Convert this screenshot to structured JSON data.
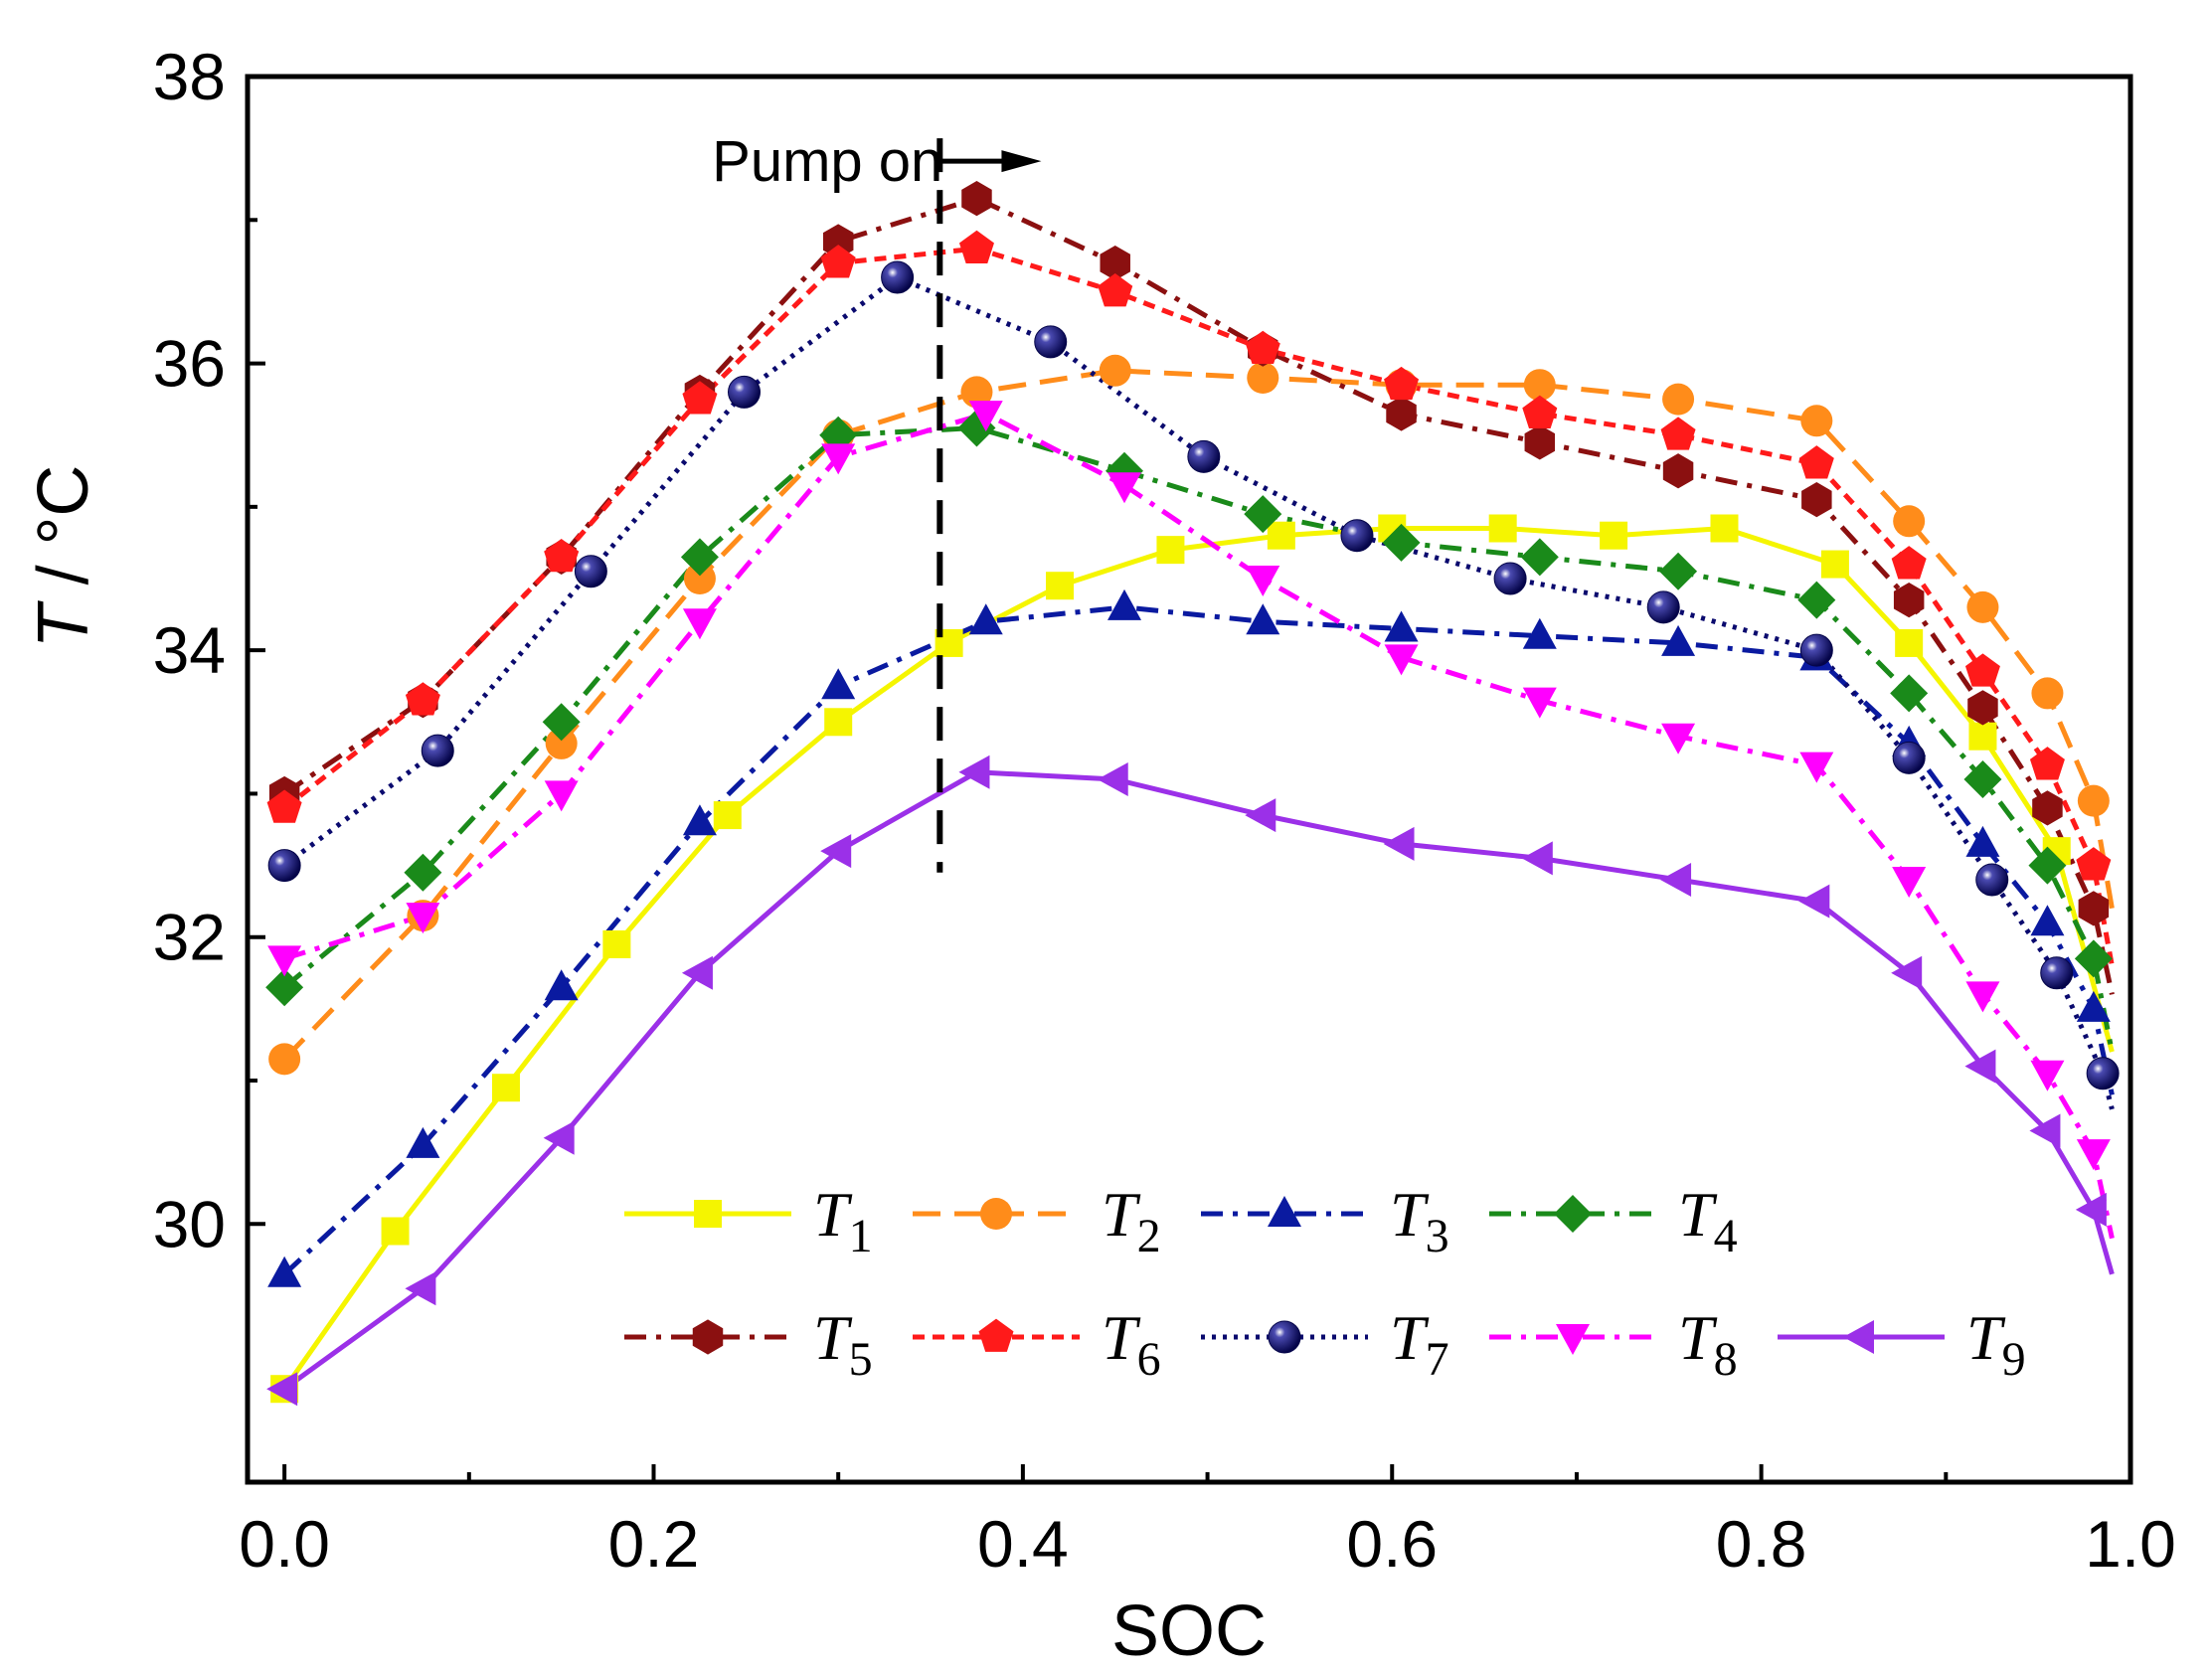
{
  "chart_data": {
    "type": "line",
    "title": "",
    "xlabel": "SOC",
    "ylabel_italic": "T",
    "ylabel_rest": " / °C",
    "xlim": [
      -0.02,
      1.0
    ],
    "ylim": [
      28.2,
      38.0
    ],
    "xticks": [
      0.0,
      0.2,
      0.4,
      0.6,
      0.8,
      1.0
    ],
    "xtick_labels": [
      "0.0",
      "0.2",
      "0.4",
      "0.6",
      "0.8",
      "1.0"
    ],
    "yticks": [
      30,
      32,
      34,
      36,
      38
    ],
    "ytick_labels": [
      "30",
      "32",
      "34",
      "36",
      "38"
    ],
    "annotation": {
      "text": "Pump on",
      "x": 0.355,
      "y_from": 37.5,
      "y_to": 32.45,
      "arrow_to_x": 0.41
    },
    "legend_position": "bottom-right",
    "series": [
      {
        "name": "T1",
        "label_main": "T",
        "label_sub": "1",
        "color": "#f5f500",
        "dash": "",
        "marker": "square",
        "x": [
          0.0,
          0.06,
          0.12,
          0.18,
          0.24,
          0.3,
          0.36,
          0.42,
          0.48,
          0.54,
          0.6,
          0.66,
          0.72,
          0.78,
          0.84,
          0.88,
          0.92,
          0.96,
          0.99
        ],
        "y": [
          28.85,
          29.95,
          30.95,
          31.95,
          32.85,
          33.5,
          34.05,
          34.45,
          34.7,
          34.8,
          34.85,
          34.85,
          34.8,
          34.85,
          34.6,
          34.05,
          33.4,
          32.6,
          31.2
        ]
      },
      {
        "name": "T2",
        "label_main": "T",
        "label_sub": "2",
        "color": "#ff8c1a",
        "dash": "28,14",
        "marker": "circle",
        "x": [
          0.0,
          0.075,
          0.15,
          0.225,
          0.3,
          0.375,
          0.45,
          0.53,
          0.605,
          0.68,
          0.755,
          0.83,
          0.88,
          0.92,
          0.955,
          0.98,
          0.99
        ],
        "y": [
          31.15,
          32.15,
          33.35,
          34.5,
          35.5,
          35.8,
          35.95,
          35.9,
          35.85,
          35.85,
          35.75,
          35.6,
          34.9,
          34.3,
          33.7,
          32.95,
          32.2
        ]
      },
      {
        "name": "T3",
        "label_main": "T",
        "label_sub": "3",
        "color": "#0a1aa0",
        "dash": "22,10,5,10",
        "marker": "triangle-up",
        "x": [
          0.0,
          0.075,
          0.15,
          0.225,
          0.3,
          0.38,
          0.455,
          0.53,
          0.605,
          0.68,
          0.755,
          0.83,
          0.88,
          0.92,
          0.955,
          0.98,
          0.99
        ],
        "y": [
          29.65,
          30.55,
          31.65,
          32.8,
          33.75,
          34.2,
          34.3,
          34.2,
          34.15,
          34.1,
          34.05,
          33.95,
          33.35,
          32.65,
          32.1,
          31.5,
          30.9
        ]
      },
      {
        "name": "T4",
        "label_main": "T",
        "label_sub": "4",
        "color": "#1a8a1a",
        "dash": "22,10,5,10",
        "marker": "diamond",
        "x": [
          0.0,
          0.075,
          0.15,
          0.225,
          0.3,
          0.375,
          0.455,
          0.53,
          0.605,
          0.68,
          0.755,
          0.83,
          0.88,
          0.92,
          0.955,
          0.98,
          0.99
        ],
        "y": [
          31.65,
          32.45,
          33.5,
          34.65,
          35.5,
          35.55,
          35.25,
          34.95,
          34.75,
          34.65,
          34.55,
          34.35,
          33.7,
          33.1,
          32.5,
          31.85,
          31.2
        ]
      },
      {
        "name": "T5",
        "label_main": "T",
        "label_sub": "5",
        "color": "#8b1010",
        "dash": "22,10,5,10",
        "marker": "hexagon",
        "x": [
          0.0,
          0.075,
          0.15,
          0.225,
          0.3,
          0.375,
          0.45,
          0.53,
          0.605,
          0.68,
          0.755,
          0.83,
          0.88,
          0.92,
          0.955,
          0.98,
          0.99
        ],
        "y": [
          33.0,
          33.65,
          34.65,
          35.8,
          36.85,
          37.15,
          36.7,
          36.1,
          35.65,
          35.45,
          35.25,
          35.05,
          34.35,
          33.6,
          32.9,
          32.2,
          31.6
        ]
      },
      {
        "name": "T6",
        "label_main": "T",
        "label_sub": "6",
        "color": "#ff1a1a",
        "dash": "12,8",
        "marker": "pentagon",
        "x": [
          0.0,
          0.075,
          0.15,
          0.225,
          0.3,
          0.375,
          0.45,
          0.53,
          0.605,
          0.68,
          0.755,
          0.83,
          0.88,
          0.92,
          0.955,
          0.98,
          0.99
        ],
        "y": [
          32.9,
          33.65,
          34.65,
          35.75,
          36.7,
          36.8,
          36.5,
          36.1,
          35.85,
          35.65,
          35.5,
          35.3,
          34.6,
          33.85,
          33.2,
          32.5,
          31.8
        ]
      },
      {
        "name": "T7",
        "label_main": "T",
        "label_sub": "7",
        "color": "#0a0a6e",
        "dash": "4,7",
        "marker": "sphere",
        "x": [
          0.0,
          0.083,
          0.166,
          0.249,
          0.332,
          0.415,
          0.498,
          0.581,
          0.664,
          0.747,
          0.83,
          0.88,
          0.925,
          0.96,
          0.985,
          0.99
        ],
        "y": [
          32.5,
          33.3,
          34.55,
          35.8,
          36.6,
          36.15,
          35.35,
          34.8,
          34.5,
          34.3,
          34.0,
          33.25,
          32.4,
          31.75,
          31.05,
          30.8
        ]
      },
      {
        "name": "T8",
        "label_main": "T",
        "label_sub": "8",
        "color": "#ff00ff",
        "dash": "22,10,5,10",
        "marker": "triangle-down",
        "x": [
          0.0,
          0.075,
          0.15,
          0.225,
          0.3,
          0.38,
          0.455,
          0.53,
          0.605,
          0.68,
          0.755,
          0.83,
          0.88,
          0.92,
          0.955,
          0.98,
          0.99
        ],
        "y": [
          31.85,
          32.15,
          33.0,
          34.2,
          35.35,
          35.65,
          35.15,
          34.5,
          33.95,
          33.65,
          33.4,
          33.2,
          32.4,
          31.6,
          31.05,
          30.5,
          29.9
        ]
      },
      {
        "name": "T9",
        "label_main": "T",
        "label_sub": "9",
        "color": "#9b30e8",
        "dash": "",
        "marker": "triangle-left",
        "x": [
          0.0,
          0.075,
          0.15,
          0.225,
          0.3,
          0.375,
          0.45,
          0.53,
          0.605,
          0.68,
          0.755,
          0.83,
          0.88,
          0.92,
          0.955,
          0.98,
          0.99
        ],
        "y": [
          28.85,
          29.55,
          30.6,
          31.75,
          32.6,
          33.15,
          33.1,
          32.85,
          32.65,
          32.55,
          32.4,
          32.25,
          31.75,
          31.1,
          30.65,
          30.1,
          29.65
        ]
      }
    ]
  }
}
